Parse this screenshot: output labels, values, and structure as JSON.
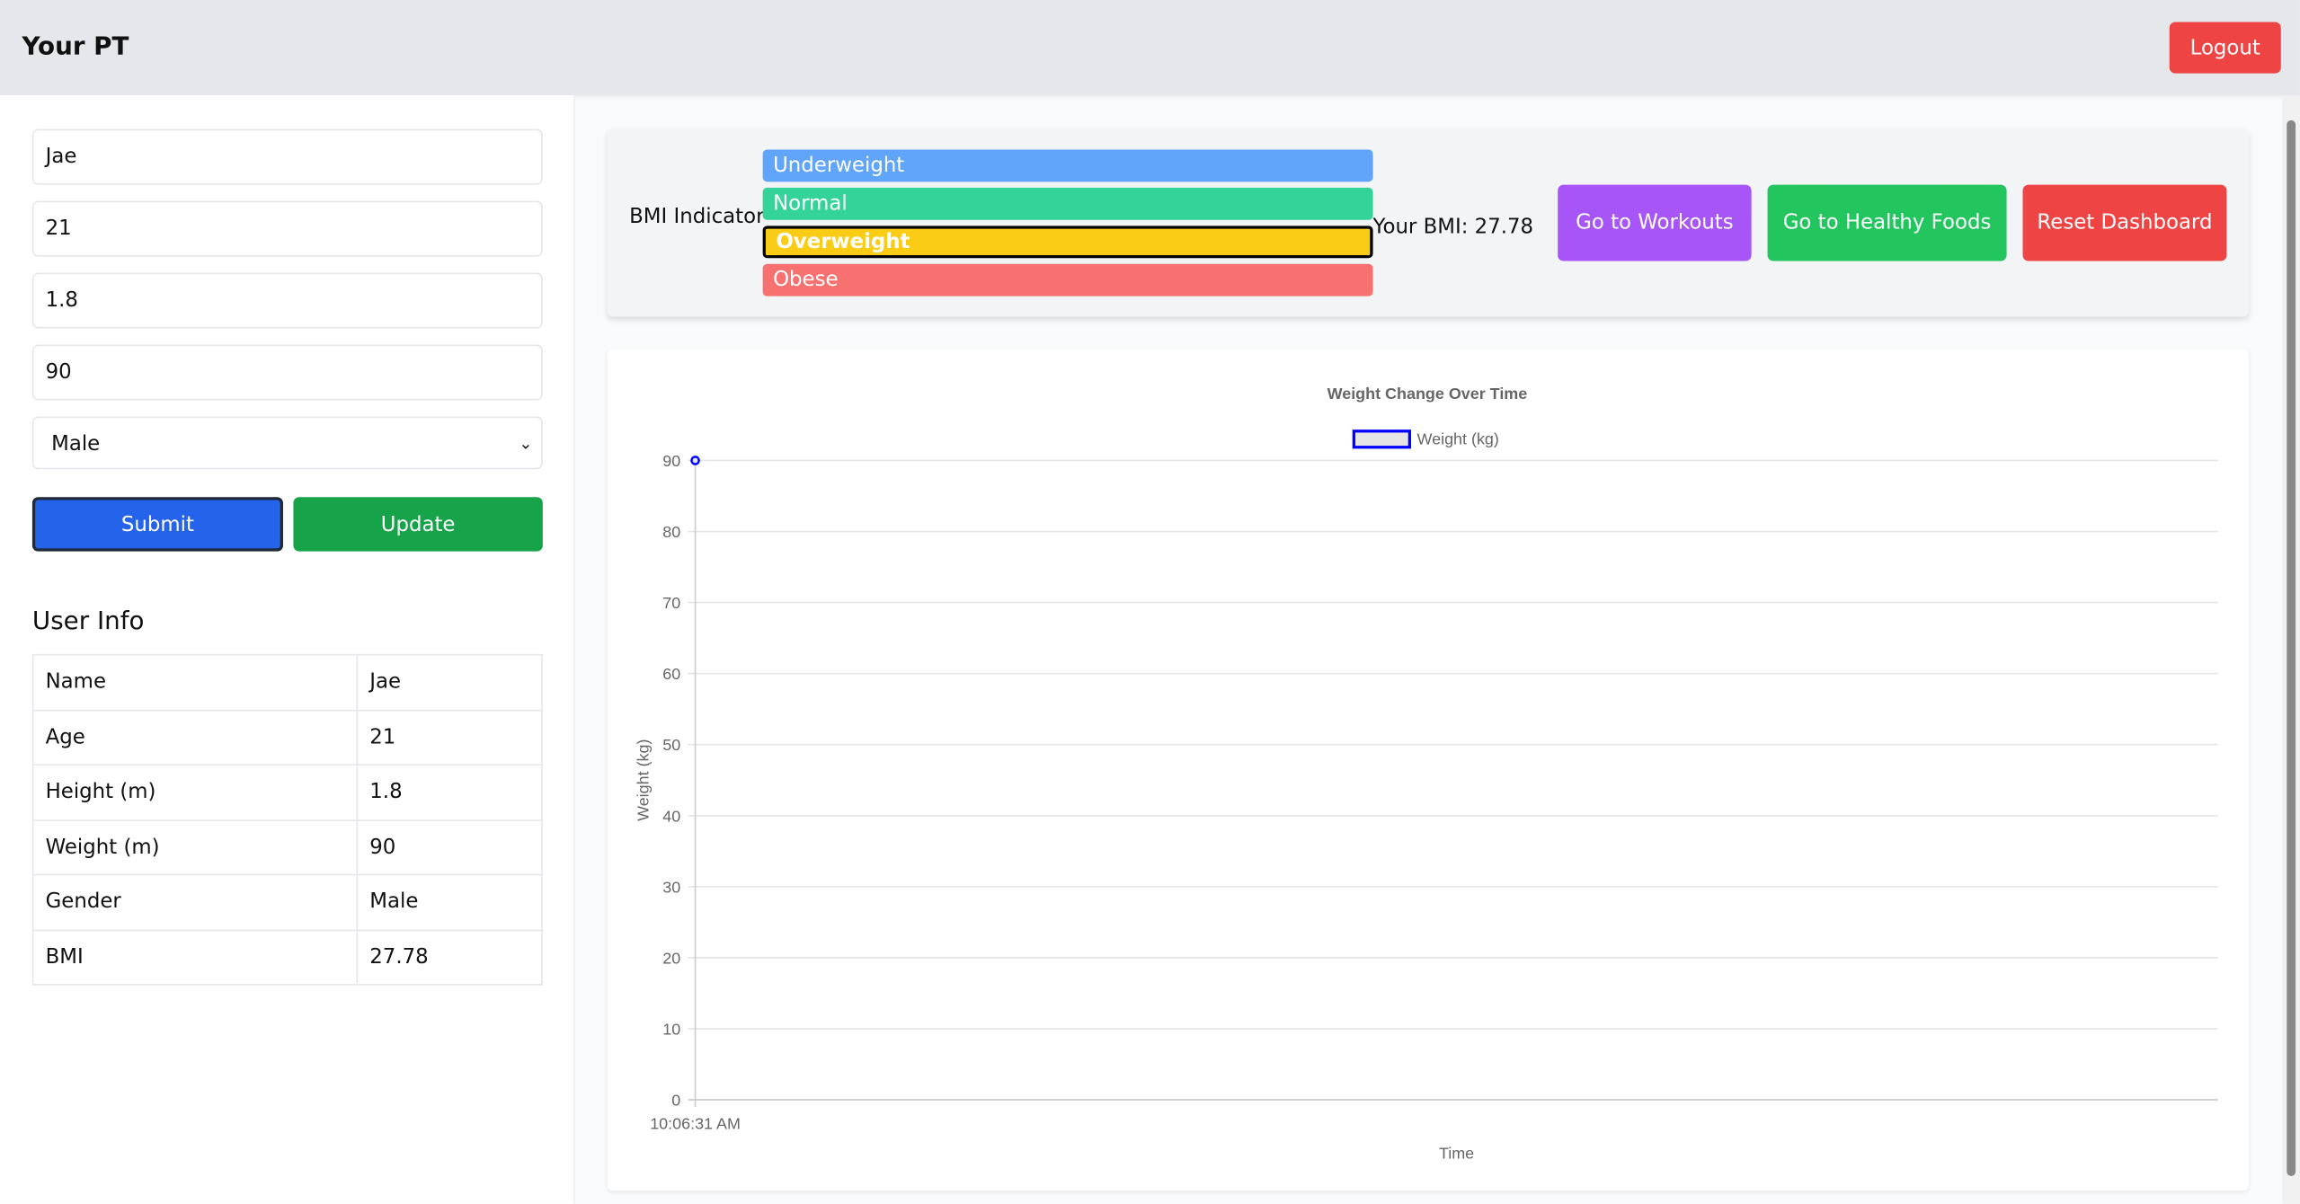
{
  "header": {
    "title": "Your PT",
    "logout_label": "Logout"
  },
  "form": {
    "name": "Jae",
    "age": "21",
    "height": "1.8",
    "weight": "90",
    "gender": "Male",
    "submit_label": "Submit",
    "update_label": "Update"
  },
  "user_info": {
    "title": "User Info",
    "rows": [
      [
        "Name",
        "Jae"
      ],
      [
        "Age",
        "21"
      ],
      [
        "Height (m)",
        "1.8"
      ],
      [
        "Weight (m)",
        "90"
      ],
      [
        "Gender",
        "Male"
      ],
      [
        "BMI",
        "27.78"
      ]
    ]
  },
  "bmi": {
    "label": "BMI Indicator",
    "categories": [
      "Underweight",
      "Normal",
      "Overweight",
      "Obese"
    ],
    "active": "Overweight",
    "colors": [
      "#60a5fa",
      "#34d399",
      "#facc15",
      "#f87171"
    ],
    "your_bmi": "Your BMI: 27.78"
  },
  "actions": {
    "workouts": "Go to Workouts",
    "foods": "Go to Healthy Foods",
    "reset": "Reset Dashboard"
  },
  "chart_data": {
    "type": "line",
    "title": "Weight Change Over Time",
    "xlabel": "Time",
    "ylabel": "Weight (kg)",
    "ylim": [
      0,
      90
    ],
    "yticks": [
      "0",
      "10",
      "20",
      "30",
      "40",
      "50",
      "60",
      "70",
      "80",
      "90"
    ],
    "categories": [
      "10:06:31 AM"
    ],
    "series": [
      {
        "name": "Weight (kg)",
        "values": [
          90
        ],
        "color": "#0000ff"
      }
    ],
    "legend": "top",
    "grid": true
  }
}
